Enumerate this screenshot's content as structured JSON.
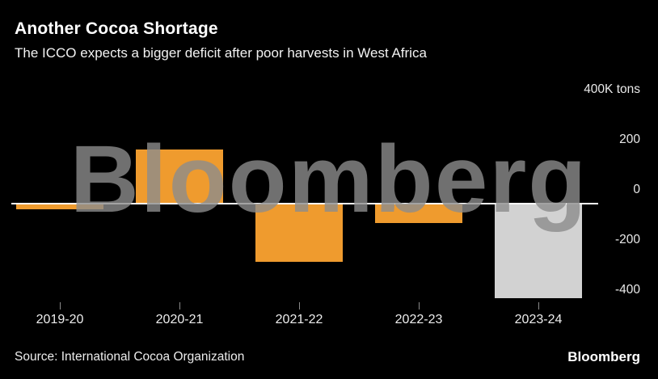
{
  "header": {
    "title": "Another Cocoa Shortage",
    "subtitle": "The ICCO expects a bigger deficit after poor harvests in West Africa"
  },
  "chart_data": {
    "type": "bar",
    "title": "Another Cocoa Shortage",
    "subtitle": "The ICCO expects a bigger deficit after poor harvests in West Africa",
    "categories": [
      "2019-20",
      "2020-21",
      "2021-22",
      "2022-23",
      "2023-24"
    ],
    "values": [
      -20,
      217,
      -230,
      -74,
      -374
    ],
    "unit": "K tons",
    "yticks": [
      {
        "value": 400,
        "label": "400K tons"
      },
      {
        "value": 200,
        "label": "200"
      },
      {
        "value": 0,
        "label": "0"
      },
      {
        "value": -200,
        "label": "-200"
      },
      {
        "value": -400,
        "label": "-400"
      }
    ],
    "ylim": [
      -450,
      420
    ],
    "grid": false,
    "legend": null,
    "bar_colors": [
      "#ef9b2e",
      "#ef9b2e",
      "#ef9b2e",
      "#ef9b2e",
      "#d2d2d2"
    ],
    "zero_line_color": "#ffffff"
  },
  "watermark": "Bloomberg",
  "footer": {
    "source": "Source: International Cocoa Organization",
    "brand": "Bloomberg"
  },
  "colors": {
    "background": "#000000",
    "bar_orange": "#ef9b2e",
    "bar_forecast_gray": "#d2d2d2",
    "text": "#ffffff",
    "watermark_gray": "#6e6e6e"
  }
}
